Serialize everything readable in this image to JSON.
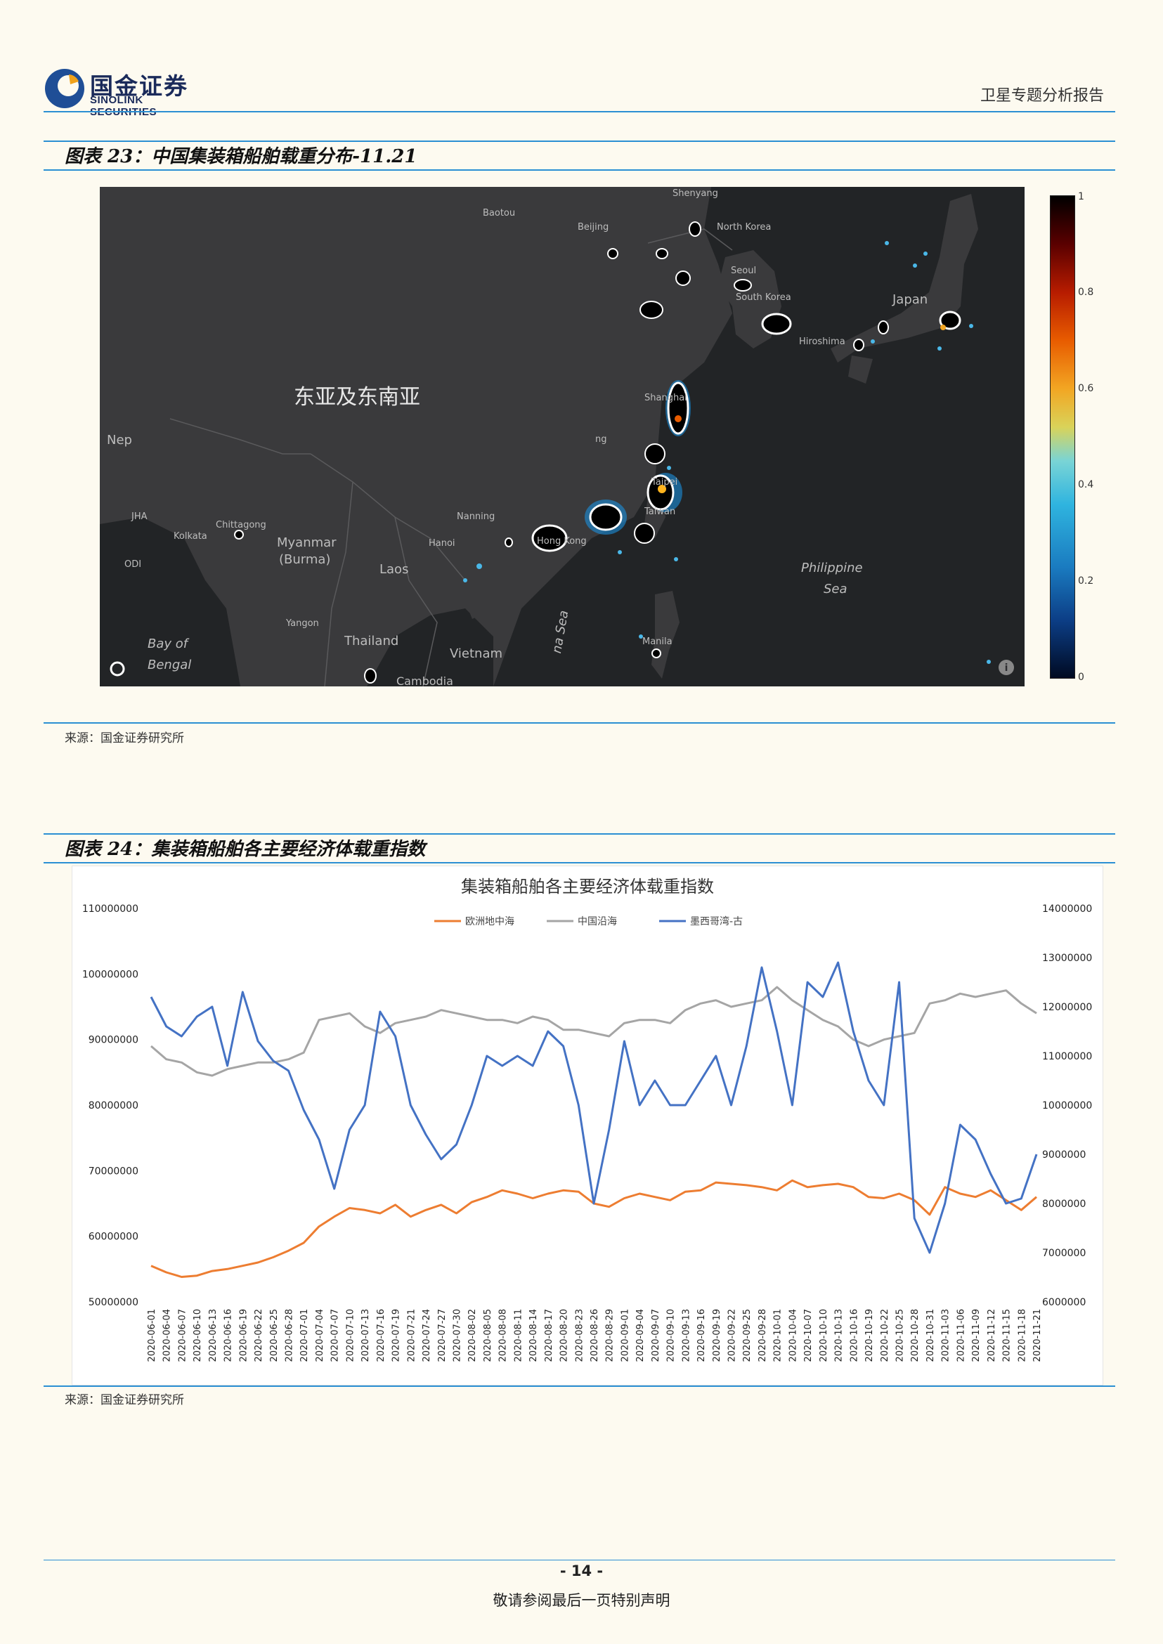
{
  "header": {
    "logo_cn": "国金证券",
    "logo_en": "SINOLINK SECURITIES",
    "doc_type": "卫星专题分析报告"
  },
  "figure23": {
    "title": "图表 23：中国集装箱船舶载重分布-11.21",
    "region_label": "东亚及东南亚",
    "colorbar_ticks": [
      "1",
      "0.8",
      "0.6",
      "0.4",
      "0.2",
      "0"
    ],
    "map_labels": [
      "Shenyang",
      "Baotou",
      "Beijing",
      "North Korea",
      "Seoul",
      "South Korea",
      "Japan",
      "Hiroshima",
      "Shanghai",
      "Nep",
      "ng",
      "Taipei",
      "Taiwan",
      "JHA",
      "Chittagong",
      "Kolkata",
      "ODI",
      "Myanmar",
      "(Burma)",
      "Nanning",
      "Hanoi",
      "Hong Kong",
      "Laos",
      "Philippine",
      "Sea",
      "Yangon",
      "Thailand",
      "Vietnam",
      "Bay of",
      "Bengal",
      "Manila",
      "Cambodia",
      "na Sea"
    ],
    "source": "来源：国金证券研究所"
  },
  "figure24": {
    "title": "图表 24：集装箱船舶各主要经济体载重指数",
    "source": "来源：国金证券研究所"
  },
  "chart_data": {
    "type": "line",
    "title": "集装箱船舶各主要经济体载重指数",
    "legend_position": "top",
    "left_axis": {
      "ticks": [
        "110000000",
        "100000000",
        "90000000",
        "80000000",
        "70000000",
        "60000000",
        "50000000"
      ],
      "range": [
        50000000,
        110000000
      ]
    },
    "right_axis": {
      "ticks": [
        "14000000",
        "13000000",
        "12000000",
        "11000000",
        "10000000",
        "9000000",
        "8000000",
        "7000000",
        "6000000"
      ],
      "range": [
        6000000,
        14000000
      ]
    },
    "x_tick_labels": [
      "2020-06-01",
      "2020-06-04",
      "2020-06-07",
      "2020-06-10",
      "2020-06-13",
      "2020-06-16",
      "2020-06-19",
      "2020-06-22",
      "2020-06-25",
      "2020-06-28",
      "2020-07-01",
      "2020-07-04",
      "2020-07-07",
      "2020-07-10",
      "2020-07-13",
      "2020-07-16",
      "2020-07-19",
      "2020-07-21",
      "2020-07-24",
      "2020-07-27",
      "2020-07-30",
      "2020-08-02",
      "2020-08-05",
      "2020-08-08",
      "2020-08-11",
      "2020-08-14",
      "2020-08-17",
      "2020-08-20",
      "2020-08-23",
      "2020-08-26",
      "2020-08-29",
      "2020-09-01",
      "2020-09-04",
      "2020-09-07",
      "2020-09-10",
      "2020-09-13",
      "2020-09-16",
      "2020-09-19",
      "2020-09-22",
      "2020-09-25",
      "2020-09-28",
      "2020-10-01",
      "2020-10-04",
      "2020-10-07",
      "2020-10-10",
      "2020-10-13",
      "2020-10-16",
      "2020-10-19",
      "2020-10-22",
      "2020-10-25",
      "2020-10-28",
      "2020-10-31",
      "2020-11-03",
      "2020-11-06",
      "2020-11-09",
      "2020-11-12",
      "2020-11-15",
      "2020-11-18",
      "2020-11-21"
    ],
    "series": [
      {
        "name": "欧洲地中海",
        "axis": "left",
        "color": "#ed7d31",
        "values": [
          55500000,
          54500000,
          53800000,
          54000000,
          54700000,
          55000000,
          55500000,
          56000000,
          56800000,
          57800000,
          59000000,
          61500000,
          63000000,
          64300000,
          64000000,
          63500000,
          64800000,
          63000000,
          64000000,
          64800000,
          63500000,
          65200000,
          66000000,
          67000000,
          66500000,
          65800000,
          66500000,
          67000000,
          66800000,
          65000000,
          64500000,
          65800000,
          66500000,
          66000000,
          65500000,
          66800000,
          67000000,
          68200000,
          68000000,
          67800000,
          67500000,
          67000000,
          68500000,
          67500000,
          67800000,
          68000000,
          67500000,
          66000000,
          65800000,
          66500000,
          65500000,
          63300000,
          67500000,
          66500000,
          66000000,
          67000000,
          65500000,
          64000000,
          66000000
        ]
      },
      {
        "name": "中国沿海",
        "axis": "left",
        "color": "#a5a5a5",
        "values": [
          89000000,
          87000000,
          86500000,
          85000000,
          84500000,
          85500000,
          86000000,
          86500000,
          86500000,
          87000000,
          88000000,
          93000000,
          93500000,
          94000000,
          92000000,
          91000000,
          92500000,
          93000000,
          93500000,
          94500000,
          94000000,
          93500000,
          93000000,
          93000000,
          92500000,
          93500000,
          93000000,
          91500000,
          91500000,
          91000000,
          90500000,
          92500000,
          93000000,
          93000000,
          92500000,
          94500000,
          95500000,
          96000000,
          95000000,
          95500000,
          96000000,
          98000000,
          96000000,
          94500000,
          93000000,
          92000000,
          90000000,
          89000000,
          90000000,
          90500000,
          91000000,
          95500000,
          96000000,
          97000000,
          96500000,
          97000000,
          97500000,
          95500000,
          94000000
        ]
      },
      {
        "name": "墨西哥湾-古",
        "axis": "right",
        "color": "#4472c4",
        "values": [
          12200000,
          11600000,
          11400000,
          11800000,
          12000000,
          10800000,
          12300000,
          11300000,
          10900000,
          10700000,
          9900000,
          9300000,
          8300000,
          9500000,
          10000000,
          11900000,
          11400000,
          10000000,
          9400000,
          8900000,
          9200000,
          10000000,
          11000000,
          10800000,
          11000000,
          10800000,
          11500000,
          11200000,
          10000000,
          8000000,
          9500000,
          11300000,
          10000000,
          10500000,
          10000000,
          10000000,
          10500000,
          11000000,
          10000000,
          11200000,
          12800000,
          11500000,
          10000000,
          12500000,
          12200000,
          12900000,
          11500000,
          10500000,
          10000000,
          12500000,
          7700000,
          7000000,
          8000000,
          9600000,
          9300000,
          8600000,
          8000000,
          8100000,
          9000000
        ]
      }
    ]
  },
  "footer": {
    "page_number": "- 14 -",
    "disclaimer": "敬请参阅最后一页特别声明"
  }
}
